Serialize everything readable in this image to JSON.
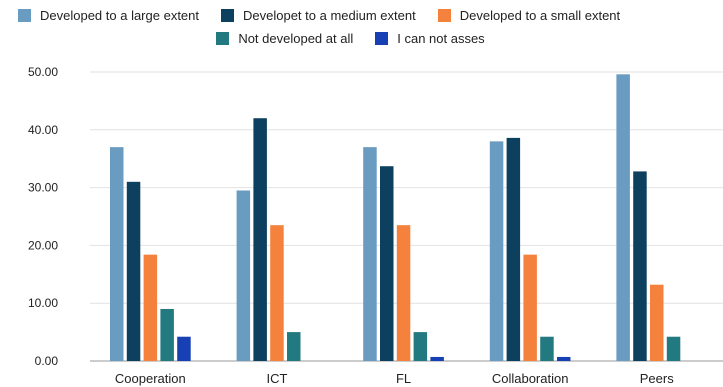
{
  "chart_data": {
    "type": "bar",
    "title": "",
    "xlabel": "",
    "ylabel": "",
    "ylim": [
      0,
      50
    ],
    "yticks": [
      "0.00",
      "10.00",
      "20.00",
      "30.00",
      "40.00",
      "50.00"
    ],
    "grid": true,
    "legend_position": "top",
    "categories": [
      "Cooperation",
      "ICT",
      "FL",
      "Collaboration",
      "Peers"
    ],
    "series": [
      {
        "name": "Developed to a large extent",
        "color": "#6a9bc0",
        "values": [
          37.0,
          29.5,
          37.0,
          38.0,
          49.6
        ]
      },
      {
        "name": "Developet to a medium extent",
        "color": "#0d3f5e",
        "values": [
          31.0,
          42.0,
          33.7,
          38.6,
          32.8
        ]
      },
      {
        "name": "Developed to a small extent",
        "color": "#f4823c",
        "values": [
          18.4,
          23.5,
          23.5,
          18.4,
          13.2
        ]
      },
      {
        "name": "Not developed at all",
        "color": "#227a80",
        "values": [
          9.0,
          5.0,
          5.0,
          4.2,
          4.2
        ]
      },
      {
        "name": "I can not asses",
        "color": "#1840b5",
        "values": [
          4.2,
          0.0,
          0.7,
          0.7,
          0.0
        ]
      }
    ]
  }
}
